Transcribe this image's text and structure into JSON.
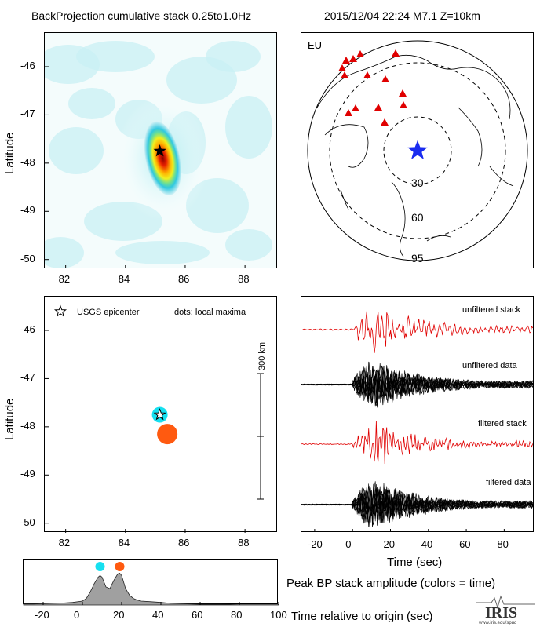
{
  "header": {
    "title": "BackProjection cumulative stack 0.25to1.0Hz",
    "event": "2015/12/04 22:24  M7.1  Z=10km"
  },
  "colors": {
    "cyan": "#16e0f0",
    "orange": "#ff5a10",
    "red_trace": "#e00000",
    "star_map": "#1a2cf0",
    "station": "#e00000",
    "hist_fill": "#a0a0a0"
  },
  "chart_data": [
    {
      "id": "heatmap",
      "type": "heatmap",
      "title": "",
      "xlabel": "",
      "ylabel": "Latitude",
      "xlim": [
        81.3,
        89.1
      ],
      "ylim": [
        -50.2,
        -45.3
      ],
      "x_ticks": [
        "82",
        "84",
        "86",
        "88"
      ],
      "x_tick_values": [
        82,
        84,
        86,
        88
      ],
      "y_ticks": [
        "-46",
        "-47",
        "-48",
        "-49",
        "-50"
      ],
      "y_tick_values": [
        -46,
        -47,
        -48,
        -49,
        -50
      ],
      "peak": {
        "lon": 85.25,
        "lat": -47.9
      },
      "epicenter": {
        "lon": 85.15,
        "lat": -47.75
      }
    },
    {
      "id": "map",
      "type": "scatter",
      "label": "EU",
      "distance_labels": [
        "30",
        "60",
        "95"
      ],
      "stations_count": 14
    },
    {
      "id": "maxima",
      "type": "scatter",
      "ylabel": "Latitude",
      "xlim": [
        81.3,
        89.1
      ],
      "ylim": [
        -50.2,
        -45.3
      ],
      "x_ticks": [
        "82",
        "84",
        "86",
        "88"
      ],
      "x_tick_values": [
        82,
        84,
        86,
        88
      ],
      "y_ticks": [
        "-46",
        "-47",
        "-48",
        "-49",
        "-50"
      ],
      "y_tick_values": [
        -46,
        -47,
        -48,
        -49,
        -50
      ],
      "legend_epicenter": "USGS epicenter",
      "legend_dots": "dots: local maxima",
      "scale_label": "300 km",
      "epicenter": {
        "lon": 85.15,
        "lat": -47.75
      },
      "points": [
        {
          "lon": 85.15,
          "lat": -47.75,
          "color": "#16e0f0",
          "time": 9
        },
        {
          "lon": 85.4,
          "lat": -48.15,
          "color": "#ff5a10",
          "time": 19
        }
      ]
    },
    {
      "id": "seismograms",
      "type": "line",
      "xlabel": "Time (sec)",
      "xlim": [
        -27,
        96
      ],
      "x_ticks": [
        "-20",
        "0",
        "20",
        "40",
        "60",
        "80"
      ],
      "x_tick_values": [
        -20,
        0,
        20,
        40,
        60,
        80
      ],
      "series": [
        {
          "name": "unfiltered stack",
          "color": "#e00000"
        },
        {
          "name": "unfiltered data",
          "color": "#000000"
        },
        {
          "name": "filtered stack",
          "color": "#e00000"
        },
        {
          "name": "filtered data",
          "color": "#000000"
        }
      ]
    },
    {
      "id": "histogram",
      "type": "area",
      "title": "Peak BP stack amplitude (colors = time)",
      "xlabel": "Time relative to origin (sec)",
      "xlim": [
        -30,
        100
      ],
      "x_ticks": [
        "-20",
        "0",
        "20",
        "40",
        "60",
        "80",
        "100"
      ],
      "x_tick_values": [
        -20,
        0,
        20,
        40,
        60,
        80,
        100
      ],
      "x": [
        -30,
        -25,
        -20,
        -15,
        -10,
        -5,
        0,
        2,
        4,
        6,
        8,
        9,
        10,
        12,
        14,
        16,
        18,
        19,
        20,
        22,
        24,
        26,
        28,
        30,
        35,
        40,
        45,
        50,
        55,
        60,
        70,
        80,
        90,
        100
      ],
      "y": [
        0.03,
        0.03,
        0.04,
        0.05,
        0.06,
        0.08,
        0.12,
        0.2,
        0.4,
        0.65,
        0.85,
        0.9,
        0.85,
        0.55,
        0.5,
        0.75,
        0.95,
        0.97,
        0.9,
        0.5,
        0.3,
        0.2,
        0.15,
        0.12,
        0.1,
        0.08,
        0.05,
        0.04,
        0.03,
        0.02,
        0.02,
        0.01,
        0.01,
        0.01
      ],
      "peaks": [
        {
          "time": 9,
          "color": "#16e0f0"
        },
        {
          "time": 19,
          "color": "#ff5a10"
        }
      ]
    }
  ],
  "logo": {
    "text": "IRIS",
    "url_text": "www.iris.edu/spud"
  }
}
